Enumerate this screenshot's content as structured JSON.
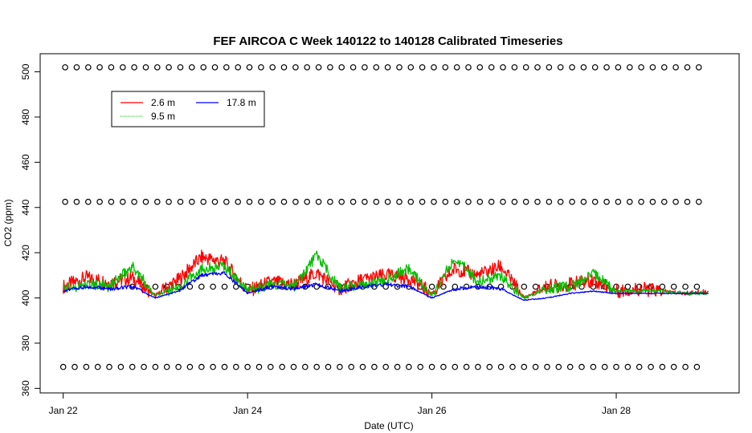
{
  "chart_data": {
    "type": "line",
    "title": "FEF AIRCOA C  Week 140122 to 140128  Calibrated Timeseries",
    "xlabel": "Date (UTC)",
    "ylabel": "CO2 (ppm)",
    "xlim": [
      "2014-01-21T18:00",
      "2014-01-29T08:00"
    ],
    "ylim": [
      358,
      508
    ],
    "x_ticks": [
      {
        "date": "2014-01-22",
        "label": "Jan 22"
      },
      {
        "date": "2014-01-24",
        "label": "Jan 24"
      },
      {
        "date": "2014-01-26",
        "label": "Jan 26"
      },
      {
        "date": "2014-01-28",
        "label": "Jan 28"
      }
    ],
    "y_ticks": [
      360,
      380,
      400,
      420,
      440,
      460,
      480,
      500
    ],
    "grid": false,
    "legend": {
      "position": "top-left",
      "entries": [
        {
          "label": "2.6 m",
          "color": "#ff0000",
          "style": "solid"
        },
        {
          "label": "9.5 m",
          "color": "#00c000",
          "style": "dotted"
        },
        {
          "label": "17.8 m",
          "color": "#0000ff",
          "style": "solid"
        }
      ]
    },
    "series": [
      {
        "name": "2.6 m",
        "color": "#ff0000",
        "x": [
          "2014-01-22T00:00",
          "2014-01-22T06:00",
          "2014-01-22T12:00",
          "2014-01-22T18:00",
          "2014-01-23T00:00",
          "2014-01-23T06:00",
          "2014-01-23T12:00",
          "2014-01-23T18:00",
          "2014-01-24T00:00",
          "2014-01-24T06:00",
          "2014-01-24T12:00",
          "2014-01-24T18:00",
          "2014-01-25T00:00",
          "2014-01-25T06:00",
          "2014-01-25T12:00",
          "2014-01-25T18:00",
          "2014-01-26T00:00",
          "2014-01-26T06:00",
          "2014-01-26T12:00",
          "2014-01-26T18:00",
          "2014-01-27T00:00",
          "2014-01-27T06:00",
          "2014-01-27T12:00",
          "2014-01-27T18:00",
          "2014-01-28T00:00",
          "2014-01-28T06:00",
          "2014-01-28T12:00",
          "2014-01-28T18:00",
          "2014-01-29T00:00"
        ],
        "y": [
          405,
          409,
          407,
          409,
          401,
          408,
          418,
          416,
          403,
          407,
          406,
          411,
          404,
          408,
          410,
          409,
          402,
          413,
          410,
          414,
          400,
          405,
          406,
          408,
          403,
          404,
          403,
          402,
          403
        ]
      },
      {
        "name": "9.5 m",
        "color": "#00c000",
        "x": [
          "2014-01-22T00:00",
          "2014-01-22T06:00",
          "2014-01-22T12:00",
          "2014-01-22T18:00",
          "2014-01-23T00:00",
          "2014-01-23T06:00",
          "2014-01-23T12:00",
          "2014-01-23T18:00",
          "2014-01-24T00:00",
          "2014-01-24T06:00",
          "2014-01-24T12:00",
          "2014-01-24T18:00",
          "2014-01-25T00:00",
          "2014-01-25T06:00",
          "2014-01-25T12:00",
          "2014-01-25T18:00",
          "2014-01-26T00:00",
          "2014-01-26T06:00",
          "2014-01-26T12:00",
          "2014-01-26T18:00",
          "2014-01-27T00:00",
          "2014-01-27T06:00",
          "2014-01-27T12:00",
          "2014-01-27T18:00",
          "2014-01-28T00:00",
          "2014-01-28T06:00",
          "2014-01-28T12:00",
          "2014-01-28T18:00",
          "2014-01-29T00:00"
        ],
        "y": [
          404,
          406,
          405,
          414,
          401,
          405,
          413,
          414,
          403,
          406,
          405,
          419,
          404,
          406,
          408,
          413,
          401,
          418,
          407,
          410,
          400,
          404,
          405,
          411,
          403,
          403,
          403,
          402,
          402
        ]
      },
      {
        "name": "17.8 m",
        "color": "#0000ff",
        "x": [
          "2014-01-22T00:00",
          "2014-01-22T06:00",
          "2014-01-22T12:00",
          "2014-01-22T18:00",
          "2014-01-23T00:00",
          "2014-01-23T06:00",
          "2014-01-23T12:00",
          "2014-01-23T18:00",
          "2014-01-24T00:00",
          "2014-01-24T06:00",
          "2014-01-24T12:00",
          "2014-01-24T18:00",
          "2014-01-25T00:00",
          "2014-01-25T06:00",
          "2014-01-25T12:00",
          "2014-01-25T18:00",
          "2014-01-26T00:00",
          "2014-01-26T06:00",
          "2014-01-26T12:00",
          "2014-01-26T18:00",
          "2014-01-27T00:00",
          "2014-01-27T06:00",
          "2014-01-27T12:00",
          "2014-01-27T18:00",
          "2014-01-28T00:00",
          "2014-01-28T06:00",
          "2014-01-28T12:00",
          "2014-01-28T18:00",
          "2014-01-29T00:00"
        ],
        "y": [
          403,
          405,
          404,
          405,
          400,
          403,
          410,
          411,
          402,
          405,
          404,
          406,
          403,
          405,
          406,
          405,
          400,
          404,
          405,
          404,
          399,
          400,
          402,
          403,
          402,
          402,
          402,
          402,
          402
        ]
      }
    ],
    "calibration_points": {
      "marker": "o",
      "levels": [
        {
          "y": 502,
          "from": "2014-01-22T00:30",
          "to": "2014-01-28T23:00"
        },
        {
          "y": 442.5,
          "from": "2014-01-22T00:30",
          "to": "2014-01-28T23:00"
        },
        {
          "y": 405,
          "from": "2014-01-22T18:00",
          "to": "2014-01-28T23:00"
        },
        {
          "y": 369.5,
          "from": "2014-01-22T00:00",
          "to": "2014-01-28T23:00"
        }
      ]
    }
  }
}
